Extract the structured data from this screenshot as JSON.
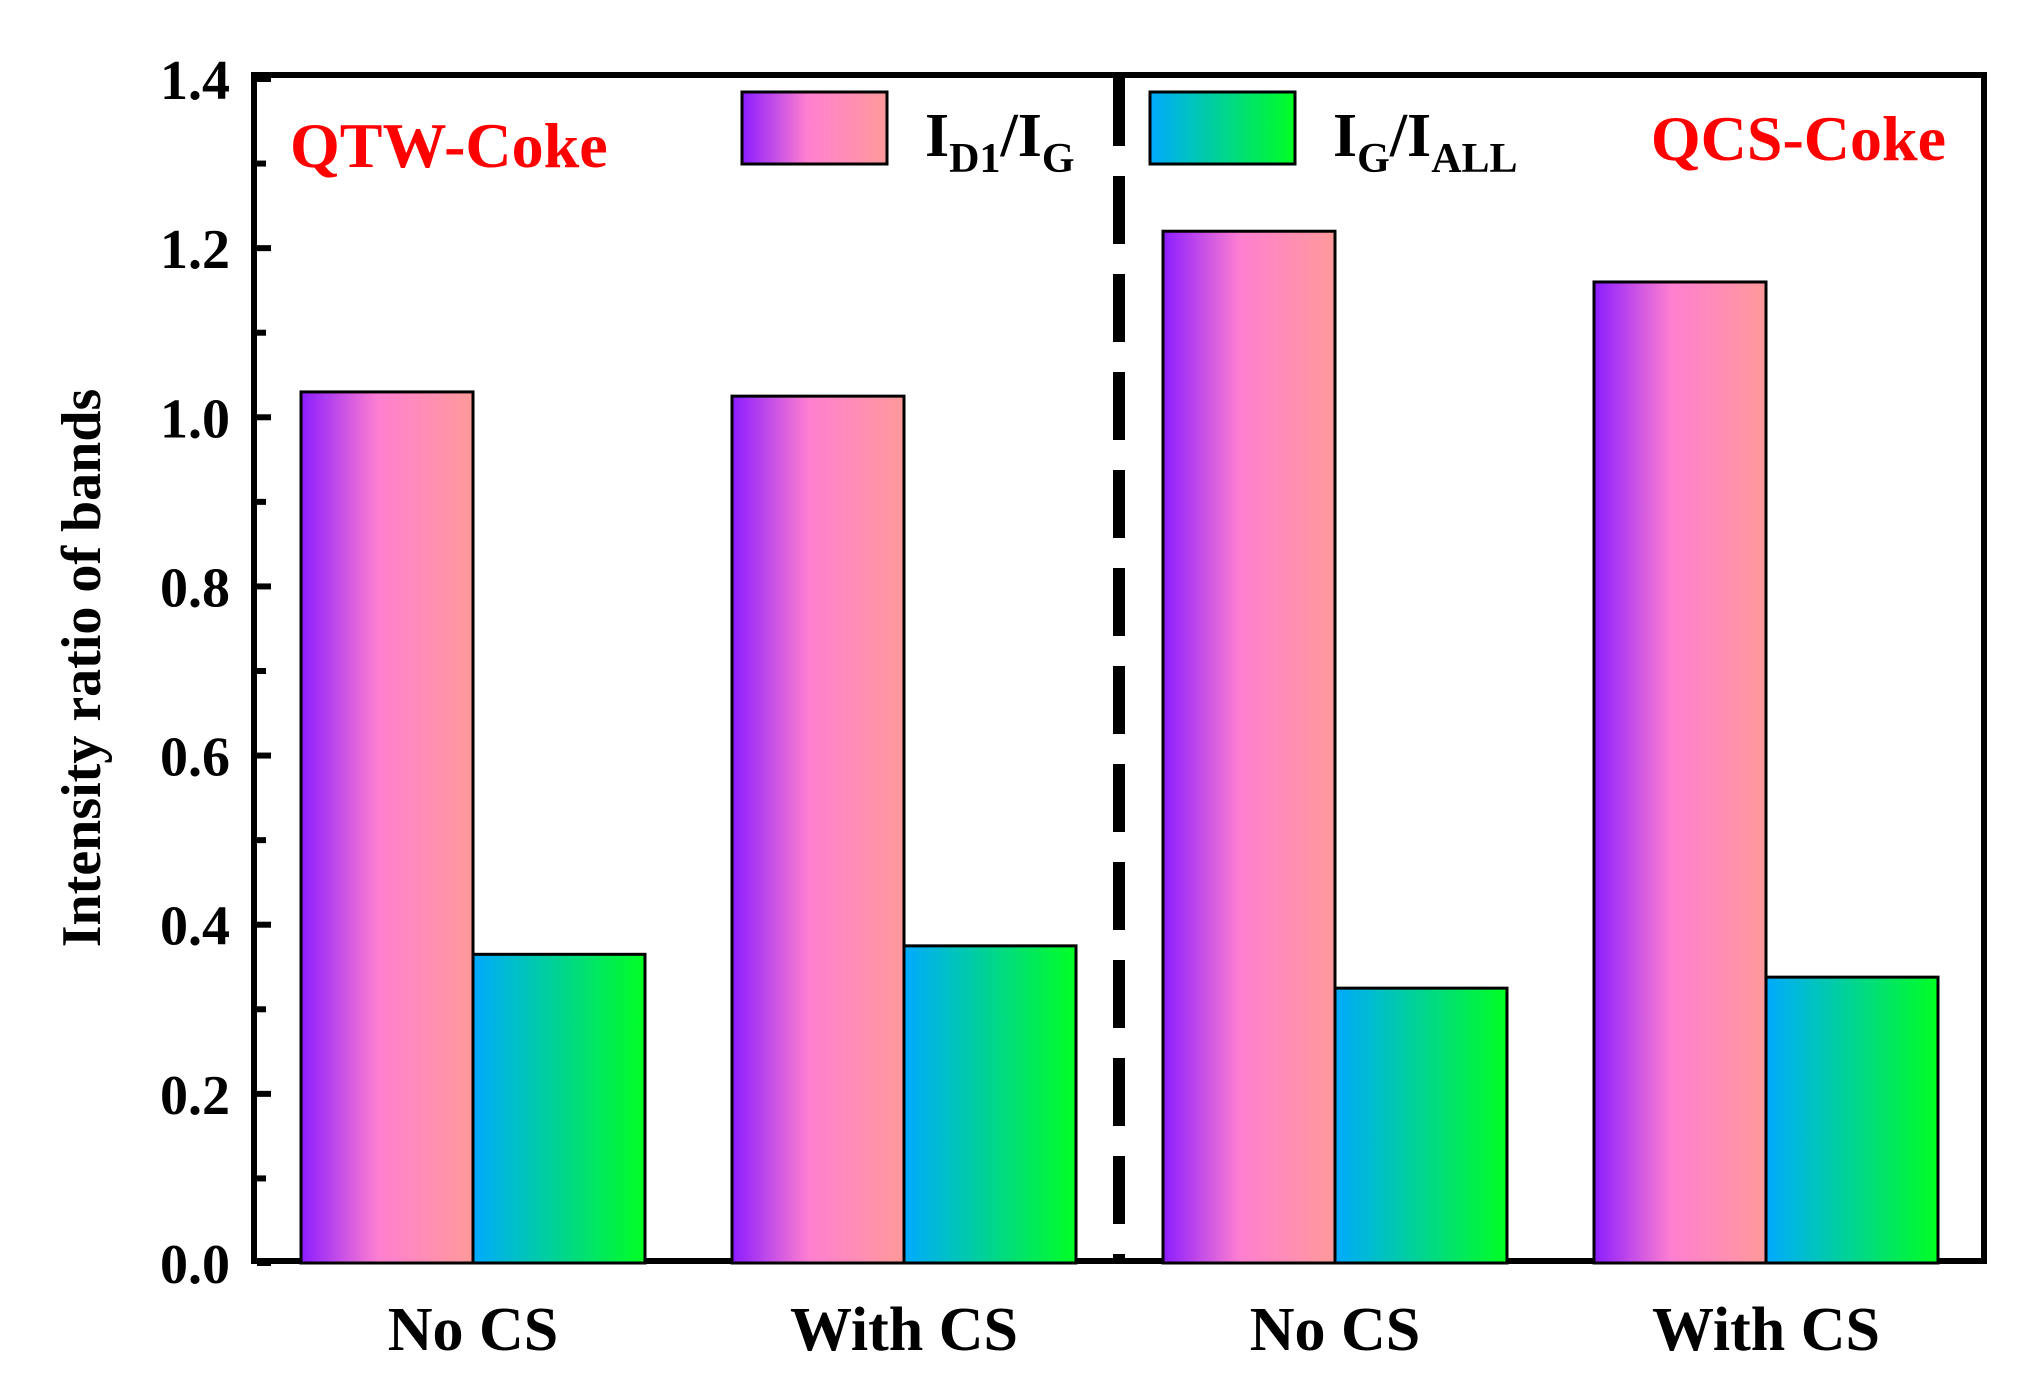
{
  "chart_data": {
    "type": "bar",
    "title": "",
    "xlabel": "",
    "ylabel": "Intensity ratio of bands",
    "ylim": [
      0,
      1.4
    ],
    "yticks": [
      "0.0",
      "0.2",
      "0.4",
      "0.6",
      "0.8",
      "1.0",
      "1.2",
      "1.4"
    ],
    "categories": [
      "No CS",
      "With CS",
      "No CS",
      "With CS"
    ],
    "groups": [
      {
        "name": "QTW-Coke",
        "color": "#ff0000"
      },
      {
        "name": "QCS-Coke",
        "color": "#ff0000"
      }
    ],
    "series": [
      {
        "name": "ID1/IG",
        "main": "I",
        "sub1": "D1",
        "slash": "/",
        "main2": "I",
        "sub2": "G",
        "gradient": [
          "#8b1cff",
          "#ff9a9a"
        ],
        "values": [
          1.03,
          1.025,
          1.22,
          1.16
        ]
      },
      {
        "name": "IG/IALL",
        "main": "I",
        "sub1": "G",
        "slash": "/",
        "main2": "I",
        "sub2": "ALL",
        "gradient": [
          "#00aaff",
          "#00ff22"
        ],
        "values": [
          0.365,
          0.375,
          0.325,
          0.338
        ]
      }
    ],
    "legend_position": "top-center",
    "separator": "dashed vertical line between groups"
  }
}
